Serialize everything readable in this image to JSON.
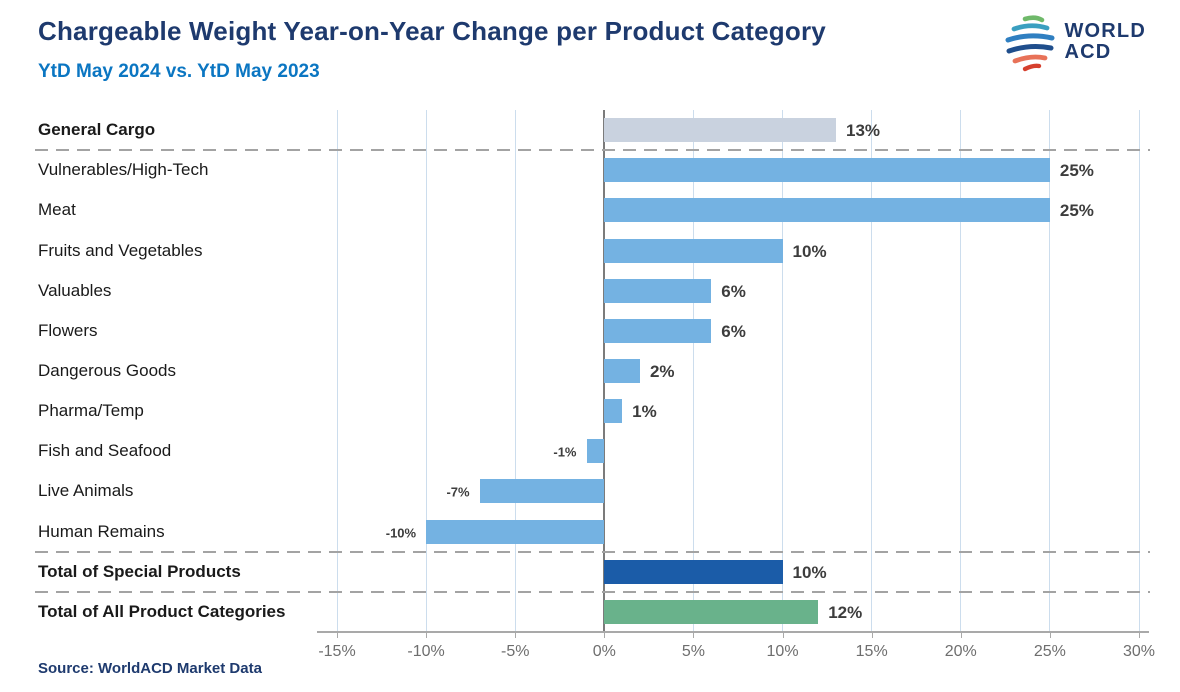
{
  "header": {
    "title": "Chargeable Weight Year-on-Year Change per Product Category",
    "subtitle": "YtD May 2024 vs. YtD May 2023"
  },
  "logo": {
    "line1": "WORLD",
    "line2": "ACD"
  },
  "footer": {
    "source": "Source: WorldACD Market Data"
  },
  "chart_data": {
    "type": "bar",
    "orientation": "horizontal",
    "title": "Chargeable Weight Year-on-Year Change per Product Category",
    "subtitle": "YtD May 2024 vs. YtD May 2023",
    "categories": [
      "General Cargo",
      "Vulnerables/High-Tech",
      "Meat",
      "Fruits and Vegetables",
      "Valuables",
      "Flowers",
      "Dangerous Goods",
      "Pharma/Temp",
      "Fish and Seafood",
      "Live Animals",
      "Human Remains",
      "Total of Special Products",
      "Total of All Product Categories"
    ],
    "values": [
      13,
      25,
      25,
      10,
      6,
      6,
      2,
      1,
      -1,
      -7,
      -10,
      10,
      12
    ],
    "value_labels": [
      "13%",
      "25%",
      "25%",
      "10%",
      "6%",
      "6%",
      "2%",
      "1%",
      "-1%",
      "-7%",
      "-10%",
      "10%",
      "12%"
    ],
    "bold": [
      true,
      false,
      false,
      false,
      false,
      false,
      false,
      false,
      false,
      false,
      false,
      true,
      true
    ],
    "bar_colors": [
      "#c9d2df",
      "#74b2e2",
      "#74b2e2",
      "#74b2e2",
      "#74b2e2",
      "#74b2e2",
      "#74b2e2",
      "#74b2e2",
      "#74b2e2",
      "#74b2e2",
      "#74b2e2",
      "#1b5ca8",
      "#69b28b"
    ],
    "separators_after": [
      0,
      10,
      11
    ],
    "x_ticks": [
      "-15%",
      "-10%",
      "-5%",
      "0%",
      "5%",
      "10%",
      "15%",
      "20%",
      "25%",
      "30%"
    ],
    "x_tick_values": [
      -15,
      -10,
      -5,
      0,
      5,
      10,
      15,
      20,
      25,
      30
    ],
    "xlim": [
      -15,
      30
    ],
    "grid": true,
    "legend": "none",
    "palette": {
      "default_bar": "#74b2e2",
      "general_cargo_bar": "#c9d2df",
      "total_special_bar": "#1b5ca8",
      "total_all_bar": "#69b28b",
      "gridline": "#ccdded",
      "zero_line": "#7b7b7b",
      "separator": "#a3a3a3",
      "title": "#1e3a6e",
      "subtitle": "#0b76c2"
    }
  }
}
